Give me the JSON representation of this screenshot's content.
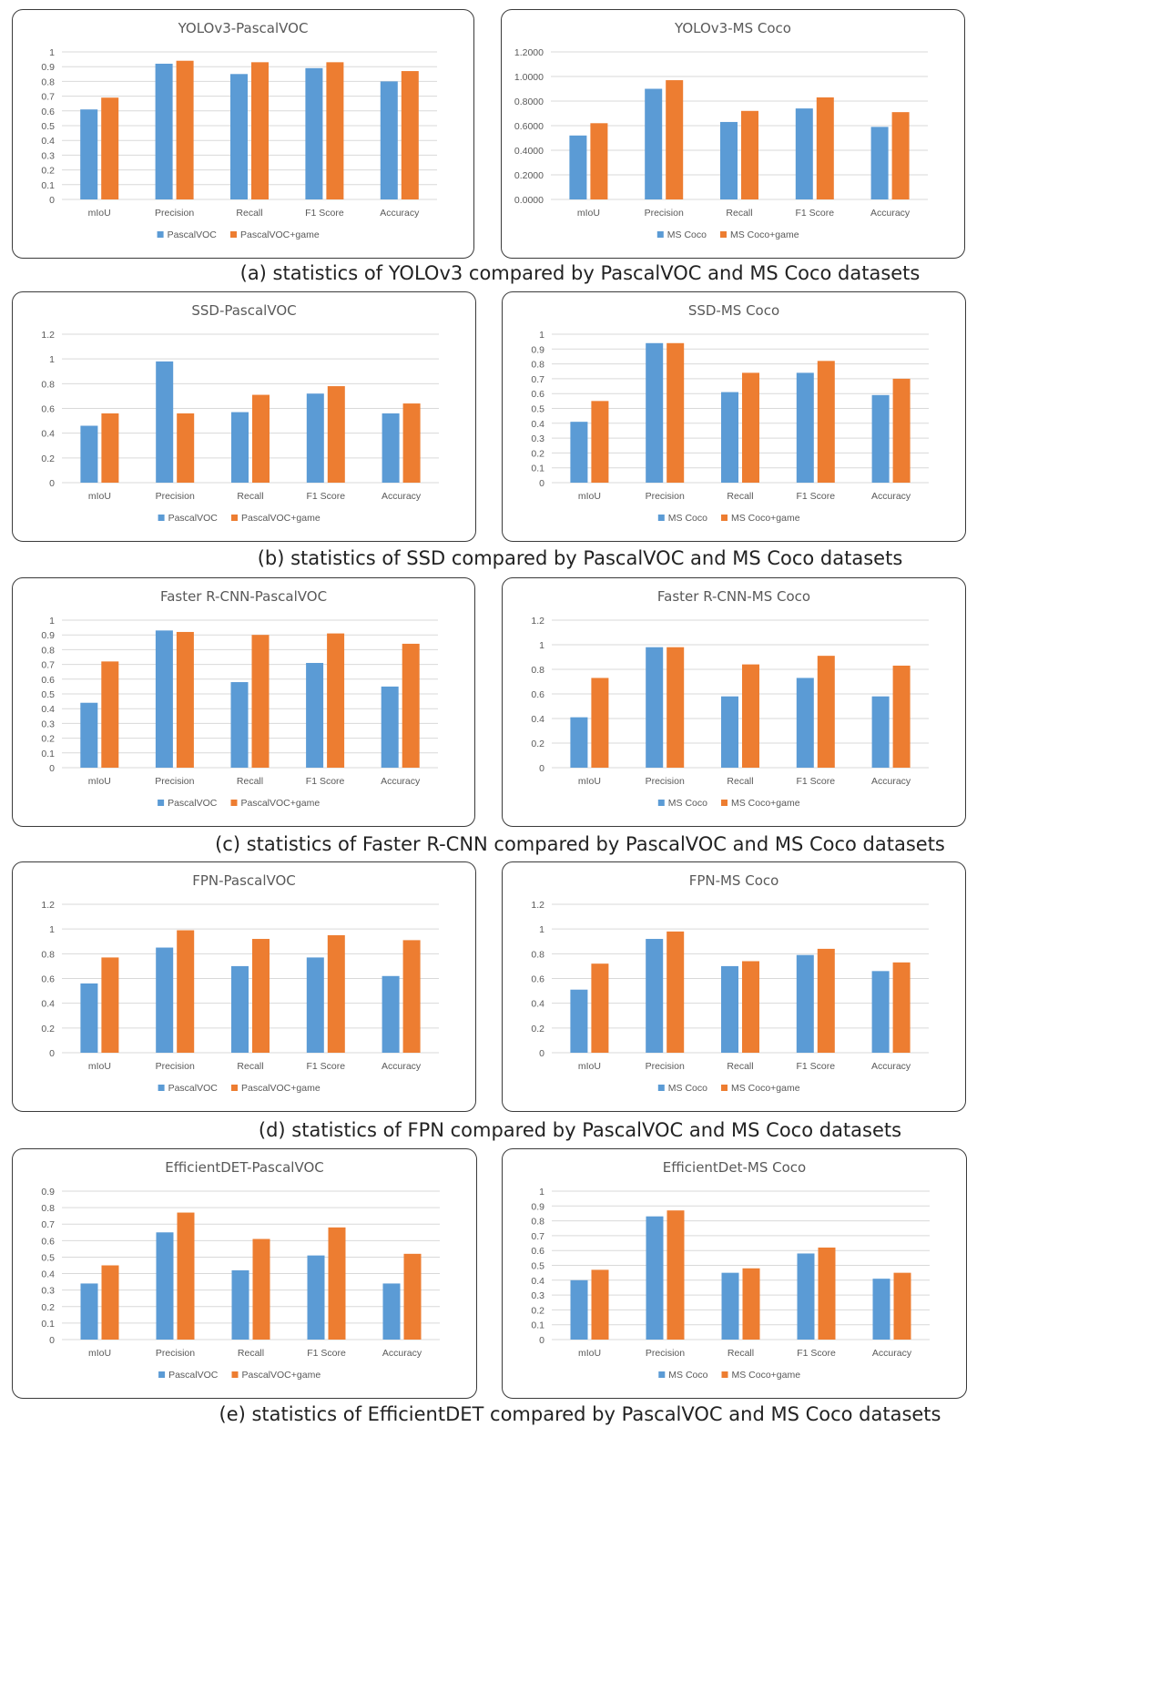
{
  "colors": {
    "base": "#5b9bd5",
    "game": "#ed7d31",
    "grid": "#d9d9d9",
    "text": "#595959"
  },
  "captions": [
    "(a) statistics of YOLOv3 compared by PascalVOC and MS Coco datasets",
    "(b) statistics of SSD compared by PascalVOC and MS Coco datasets",
    "(c) statistics of Faster R-CNN compared by PascalVOC and MS Coco datasets",
    "(d) statistics of FPN compared by PascalVOC and MS Coco datasets",
    "(e) statistics of EfficientDET compared by PascalVOC and MS Coco datasets"
  ],
  "chart_data": [
    {
      "type": "bar",
      "title": "YOLOv3-PascalVOC",
      "categories": [
        "mIoU",
        "Precision",
        "Recall",
        "F1 Score",
        "Accuracy"
      ],
      "yticks": [
        "0",
        "0.1",
        "0.2",
        "0.3",
        "0.4",
        "0.5",
        "0.6",
        "0.7",
        "0.8",
        "0.9",
        "1"
      ],
      "ylim": [
        0,
        1
      ],
      "series": [
        {
          "name": "PascalVOC",
          "values": [
            0.61,
            0.92,
            0.85,
            0.89,
            0.8
          ]
        },
        {
          "name": "PascalVOC+game",
          "values": [
            0.69,
            0.94,
            0.93,
            0.93,
            0.87
          ]
        }
      ]
    },
    {
      "type": "bar",
      "title": "YOLOv3-MS Coco",
      "categories": [
        "mIoU",
        "Precision",
        "Recall",
        "F1 Score",
        "Accuracy"
      ],
      "yticks": [
        "0.0000",
        "0.2000",
        "0.4000",
        "0.6000",
        "0.8000",
        "1.0000",
        "1.2000"
      ],
      "ylim": [
        0,
        1.2
      ],
      "series": [
        {
          "name": "MS Coco",
          "values": [
            0.52,
            0.9,
            0.63,
            0.74,
            0.59
          ]
        },
        {
          "name": "MS Coco+game",
          "values": [
            0.62,
            0.97,
            0.72,
            0.83,
            0.71
          ]
        }
      ]
    },
    {
      "type": "bar",
      "title": "SSD-PascalVOC",
      "categories": [
        "mIoU",
        "Precision",
        "Recall",
        "F1 Score",
        "Accuracy"
      ],
      "yticks": [
        "0",
        "0.2",
        "0.4",
        "0.6",
        "0.8",
        "1",
        "1.2"
      ],
      "ylim": [
        0,
        1.2
      ],
      "series": [
        {
          "name": "PascalVOC",
          "values": [
            0.46,
            0.98,
            0.57,
            0.72,
            0.56
          ]
        },
        {
          "name": "PascalVOC+game",
          "values": [
            0.56,
            0.56,
            0.71,
            0.78,
            0.64
          ]
        }
      ]
    },
    {
      "type": "bar",
      "title": "SSD-MS Coco",
      "categories": [
        "mIoU",
        "Precision",
        "Recall",
        "F1 Score",
        "Accuracy"
      ],
      "yticks": [
        "0",
        "0.1",
        "0.2",
        "0.3",
        "0.4",
        "0.5",
        "0.6",
        "0.7",
        "0.8",
        "0.9",
        "1"
      ],
      "ylim": [
        0,
        1
      ],
      "series": [
        {
          "name": "MS Coco",
          "values": [
            0.41,
            0.94,
            0.61,
            0.74,
            0.59
          ]
        },
        {
          "name": "MS Coco+game",
          "values": [
            0.55,
            0.94,
            0.74,
            0.82,
            0.7
          ]
        }
      ]
    },
    {
      "type": "bar",
      "title": "Faster R-CNN-PascalVOC",
      "categories": [
        "mIoU",
        "Precision",
        "Recall",
        "F1 Score",
        "Accuracy"
      ],
      "yticks": [
        "0",
        "0.1",
        "0.2",
        "0.3",
        "0.4",
        "0.5",
        "0.6",
        "0.7",
        "0.8",
        "0.9",
        "1"
      ],
      "ylim": [
        0,
        1
      ],
      "series": [
        {
          "name": "PascalVOC",
          "values": [
            0.44,
            0.93,
            0.58,
            0.71,
            0.55
          ]
        },
        {
          "name": "PascalVOC+game",
          "values": [
            0.72,
            0.92,
            0.9,
            0.91,
            0.84
          ]
        }
      ]
    },
    {
      "type": "bar",
      "title": "Faster R-CNN-MS Coco",
      "categories": [
        "mIoU",
        "Precision",
        "Recall",
        "F1 Score",
        "Accuracy"
      ],
      "yticks": [
        "0",
        "0.2",
        "0.4",
        "0.6",
        "0.8",
        "1",
        "1.2"
      ],
      "ylim": [
        0,
        1.2
      ],
      "series": [
        {
          "name": "MS Coco",
          "values": [
            0.41,
            0.98,
            0.58,
            0.73,
            0.58
          ]
        },
        {
          "name": "MS Coco+game",
          "values": [
            0.73,
            0.98,
            0.84,
            0.91,
            0.83
          ]
        }
      ]
    },
    {
      "type": "bar",
      "title": "FPN-PascalVOC",
      "categories": [
        "mIoU",
        "Precision",
        "Recall",
        "F1 Score",
        "Accuracy"
      ],
      "yticks": [
        "0",
        "0.2",
        "0.4",
        "0.6",
        "0.8",
        "1",
        "1.2"
      ],
      "ylim": [
        0,
        1.2
      ],
      "series": [
        {
          "name": "PascalVOC",
          "values": [
            0.56,
            0.85,
            0.7,
            0.77,
            0.62
          ]
        },
        {
          "name": "PascalVOC+game",
          "values": [
            0.77,
            0.99,
            0.92,
            0.95,
            0.91
          ]
        }
      ]
    },
    {
      "type": "bar",
      "title": "FPN-MS Coco",
      "categories": [
        "mIoU",
        "Precision",
        "Recall",
        "F1 Score",
        "Accuracy"
      ],
      "yticks": [
        "0",
        "0.2",
        "0.4",
        "0.6",
        "0.8",
        "1",
        "1.2"
      ],
      "ylim": [
        0,
        1.2
      ],
      "series": [
        {
          "name": "MS Coco",
          "values": [
            0.51,
            0.92,
            0.7,
            0.79,
            0.66
          ]
        },
        {
          "name": "MS Coco+game",
          "values": [
            0.72,
            0.98,
            0.74,
            0.84,
            0.73
          ]
        }
      ]
    },
    {
      "type": "bar",
      "title": "EfficientDET-PascalVOC",
      "categories": [
        "mIoU",
        "Precision",
        "Recall",
        "F1 Score",
        "Accuracy"
      ],
      "yticks": [
        "0",
        "0.1",
        "0.2",
        "0.3",
        "0.4",
        "0.5",
        "0.6",
        "0.7",
        "0.8",
        "0.9"
      ],
      "ylim": [
        0,
        0.9
      ],
      "series": [
        {
          "name": "PascalVOC",
          "values": [
            0.34,
            0.65,
            0.42,
            0.51,
            0.34
          ]
        },
        {
          "name": "PascalVOC+game",
          "values": [
            0.45,
            0.77,
            0.61,
            0.68,
            0.52
          ]
        }
      ]
    },
    {
      "type": "bar",
      "title": "EfficientDet-MS Coco",
      "categories": [
        "mIoU",
        "Precision",
        "Recall",
        "F1 Score",
        "Accuracy"
      ],
      "yticks": [
        "0",
        "0.1",
        "0.2",
        "0.3",
        "0.4",
        "0.5",
        "0.6",
        "0.7",
        "0.8",
        "0.9",
        "1"
      ],
      "ylim": [
        0,
        1
      ],
      "series": [
        {
          "name": "MS Coco",
          "values": [
            0.4,
            0.83,
            0.45,
            0.58,
            0.41
          ]
        },
        {
          "name": "MS Coco+game",
          "values": [
            0.47,
            0.87,
            0.48,
            0.62,
            0.45
          ]
        }
      ]
    }
  ]
}
